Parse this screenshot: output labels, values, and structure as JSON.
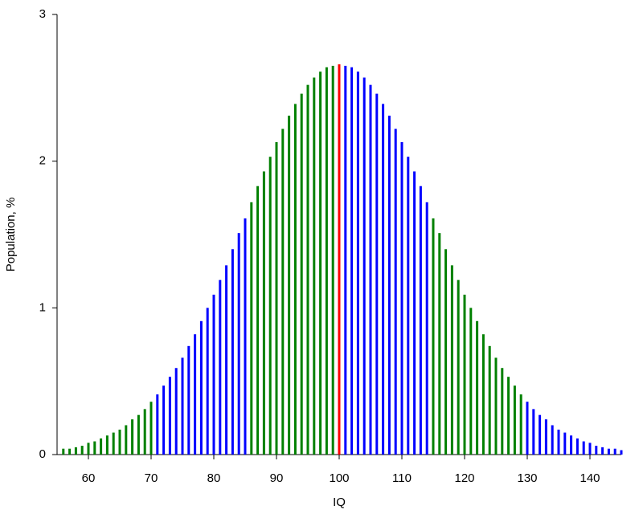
{
  "chart_data": {
    "type": "bar",
    "xlabel": "IQ",
    "ylabel": "Population, %",
    "x": [
      56,
      57,
      58,
      59,
      60,
      61,
      62,
      63,
      64,
      65,
      66,
      67,
      68,
      69,
      70,
      71,
      72,
      73,
      74,
      75,
      76,
      77,
      78,
      79,
      80,
      81,
      82,
      83,
      84,
      85,
      86,
      87,
      88,
      89,
      90,
      91,
      92,
      93,
      94,
      95,
      96,
      97,
      98,
      99,
      100,
      101,
      102,
      103,
      104,
      105,
      106,
      107,
      108,
      109,
      110,
      111,
      112,
      113,
      114,
      115,
      116,
      117,
      118,
      119,
      120,
      121,
      122,
      123,
      124,
      125,
      126,
      127,
      128,
      129,
      130,
      131,
      132,
      133,
      134,
      135,
      136,
      137,
      138,
      139,
      140,
      141,
      142,
      143,
      144,
      145
    ],
    "values": [
      0.04,
      0.04,
      0.05,
      0.06,
      0.08,
      0.09,
      0.11,
      0.13,
      0.15,
      0.17,
      0.2,
      0.24,
      0.27,
      0.31,
      0.36,
      0.41,
      0.47,
      0.53,
      0.59,
      0.66,
      0.74,
      0.82,
      0.91,
      1.0,
      1.09,
      1.19,
      1.29,
      1.4,
      1.51,
      1.61,
      1.72,
      1.83,
      1.93,
      2.03,
      2.13,
      2.22,
      2.31,
      2.39,
      2.46,
      2.52,
      2.57,
      2.61,
      2.64,
      2.65,
      2.66,
      2.65,
      2.64,
      2.61,
      2.57,
      2.52,
      2.46,
      2.39,
      2.31,
      2.22,
      2.13,
      2.03,
      1.93,
      1.83,
      1.72,
      1.61,
      1.51,
      1.4,
      1.29,
      1.19,
      1.09,
      1.0,
      0.91,
      0.82,
      0.74,
      0.66,
      0.59,
      0.53,
      0.47,
      0.41,
      0.36,
      0.31,
      0.27,
      0.24,
      0.2,
      0.17,
      0.15,
      0.13,
      0.11,
      0.09,
      0.08,
      0.06,
      0.05,
      0.04,
      0.04,
      0.03
    ],
    "colors": [
      "#008000",
      "#008000",
      "#008000",
      "#008000",
      "#008000",
      "#008000",
      "#008000",
      "#008000",
      "#008000",
      "#008000",
      "#008000",
      "#008000",
      "#008000",
      "#008000",
      "#008000",
      "#0000ff",
      "#0000ff",
      "#0000ff",
      "#0000ff",
      "#0000ff",
      "#0000ff",
      "#0000ff",
      "#0000ff",
      "#0000ff",
      "#0000ff",
      "#0000ff",
      "#0000ff",
      "#0000ff",
      "#0000ff",
      "#0000ff",
      "#008000",
      "#008000",
      "#008000",
      "#008000",
      "#008000",
      "#008000",
      "#008000",
      "#008000",
      "#008000",
      "#008000",
      "#008000",
      "#008000",
      "#008000",
      "#008000",
      "#ff0000",
      "#0000ff",
      "#0000ff",
      "#0000ff",
      "#0000ff",
      "#0000ff",
      "#0000ff",
      "#0000ff",
      "#0000ff",
      "#0000ff",
      "#0000ff",
      "#0000ff",
      "#0000ff",
      "#0000ff",
      "#0000ff",
      "#008000",
      "#008000",
      "#008000",
      "#008000",
      "#008000",
      "#008000",
      "#008000",
      "#008000",
      "#008000",
      "#008000",
      "#008000",
      "#008000",
      "#008000",
      "#008000",
      "#008000",
      "#0000ff",
      "#0000ff",
      "#0000ff",
      "#0000ff",
      "#0000ff",
      "#0000ff",
      "#0000ff",
      "#0000ff",
      "#0000ff",
      "#0000ff",
      "#0000ff",
      "#0000ff",
      "#0000ff",
      "#0000ff",
      "#0000ff",
      "#0000ff"
    ],
    "xlim": [
      55,
      145
    ],
    "xticks": [
      60,
      70,
      80,
      90,
      100,
      110,
      120,
      130,
      140
    ],
    "ylim": [
      0,
      3
    ],
    "yticks": [
      0,
      1,
      2,
      3
    ],
    "grid": false
  }
}
